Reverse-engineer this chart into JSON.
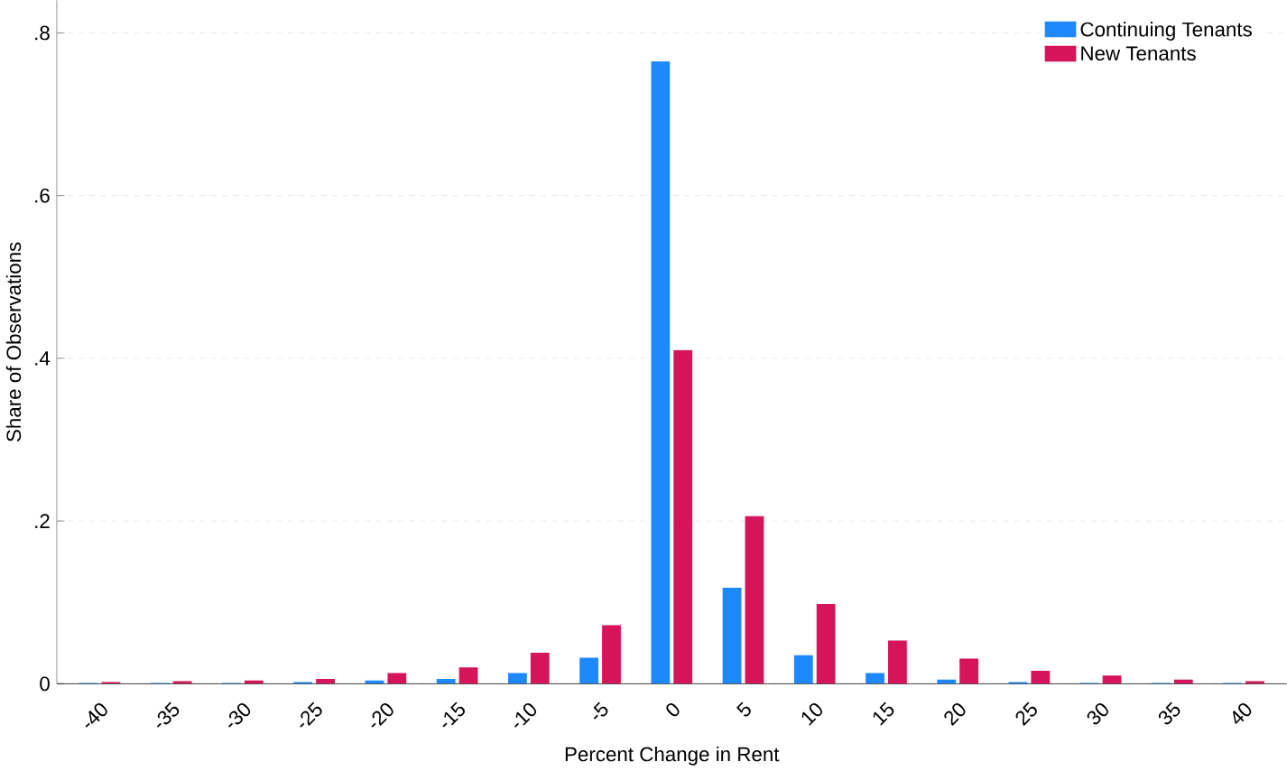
{
  "chart_data": {
    "type": "bar",
    "xlabel": "Percent Change in Rent",
    "ylabel": "Share of Observations",
    "categories": [
      "-40",
      "-35",
      "-30",
      "-25",
      "-20",
      "-15",
      "-10",
      "-5",
      "0",
      "5",
      "10",
      "15",
      "20",
      "25",
      "30",
      "35",
      "40"
    ],
    "series": [
      {
        "name": "Continuing Tenants",
        "color": "#1e88ff",
        "values": [
          0.001,
          0.001,
          0.001,
          0.002,
          0.004,
          0.006,
          0.013,
          0.032,
          0.765,
          0.118,
          0.035,
          0.013,
          0.005,
          0.002,
          0.001,
          0.001,
          0.001
        ]
      },
      {
        "name": "New Tenants",
        "color": "#d6145a",
        "values": [
          0.002,
          0.003,
          0.004,
          0.006,
          0.013,
          0.02,
          0.038,
          0.072,
          0.41,
          0.206,
          0.098,
          0.053,
          0.031,
          0.016,
          0.01,
          0.005,
          0.003
        ]
      }
    ],
    "ylim": [
      0,
      0.84
    ],
    "yticks": [
      {
        "value": 0,
        "label": "0"
      },
      {
        "value": 0.2,
        "label": ".2"
      },
      {
        "value": 0.4,
        "label": ".4"
      },
      {
        "value": 0.6,
        "label": ".6"
      },
      {
        "value": 0.8,
        "label": ".8"
      }
    ],
    "grid": "y",
    "legend": "top right"
  }
}
